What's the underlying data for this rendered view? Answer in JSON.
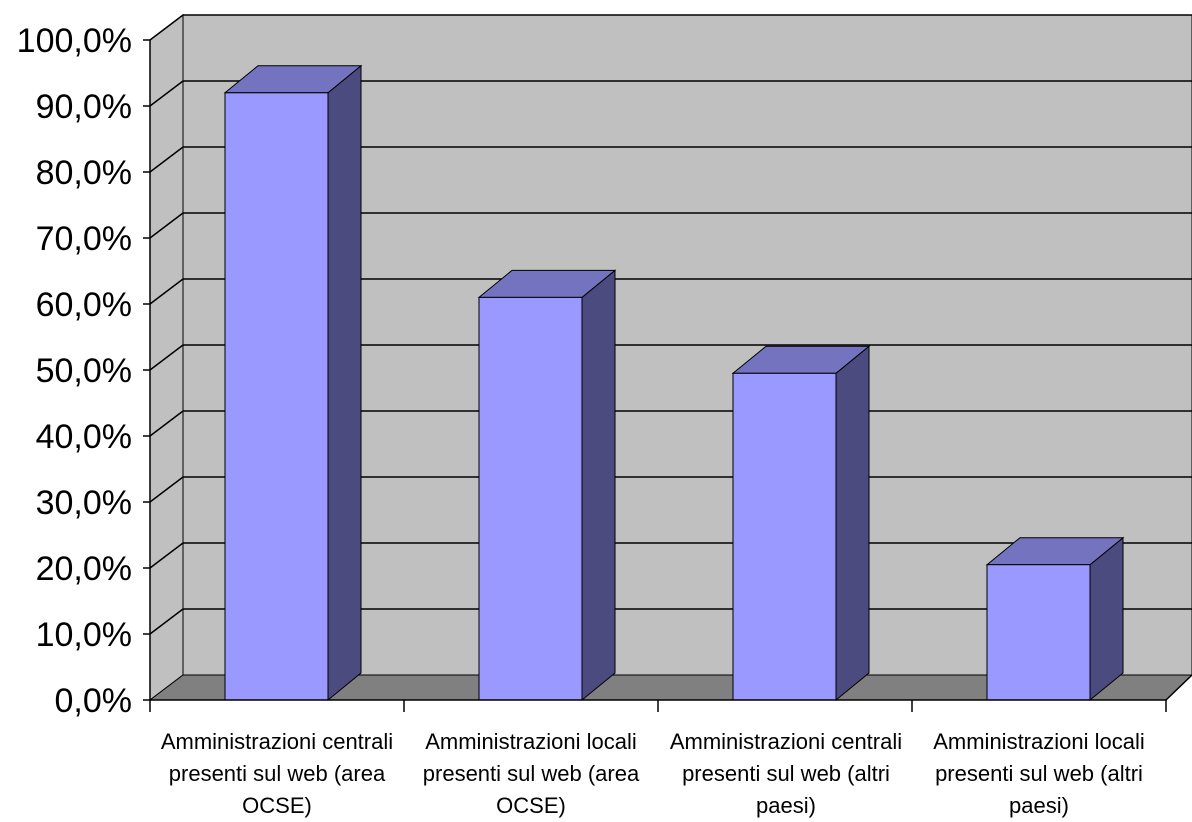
{
  "chart_data": {
    "type": "bar",
    "categories": [
      "Amministrazioni centrali presenti sul web (area OCSE)",
      "Amministrazioni locali presenti sul web (area OCSE)",
      "Amministrazioni centrali presenti sul web (altri paesi)",
      "Amministrazioni locali presenti sul web (altri paesi)"
    ],
    "series": [
      {
        "values": [
          92.0,
          61.0,
          49.5,
          20.5
        ]
      }
    ],
    "ylim": [
      0,
      100
    ],
    "yticks": [
      "0,0%",
      "10,0%",
      "20,0%",
      "30,0%",
      "40,0%",
      "50,0%",
      "60,0%",
      "70,0%",
      "80,0%",
      "90,0%",
      "100,0%"
    ],
    "title": "",
    "xlabel": "",
    "ylabel": "",
    "grid": true,
    "legend": "none",
    "colors": {
      "bar_front": "#9999ff",
      "bar_side": "#4b4b7f",
      "bar_top": "#7373bf",
      "wall": "#c0c0c0",
      "floor": "#808080"
    }
  }
}
